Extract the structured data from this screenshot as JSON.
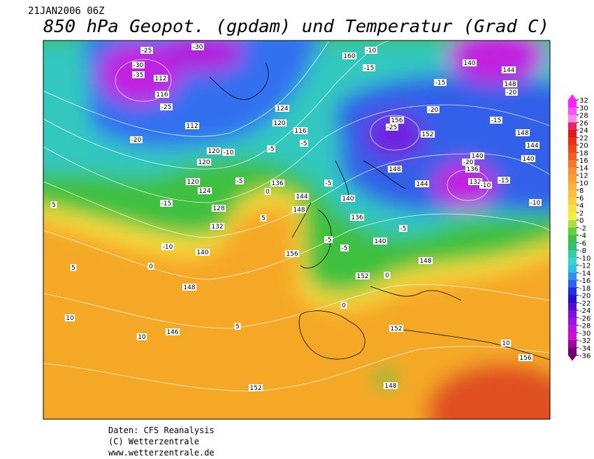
{
  "header": {
    "date": "21JAN2006 06Z",
    "title": "850 hPa Geopot. (gpdam) und  Temperatur (Grad C)"
  },
  "colorbar": {
    "ticks": [
      32,
      30,
      28,
      26,
      24,
      22,
      20,
      18,
      16,
      14,
      12,
      10,
      8,
      6,
      4,
      2,
      0,
      -2,
      -4,
      -6,
      -8,
      -10,
      -12,
      -14,
      -16,
      -18,
      -20,
      -22,
      -24,
      -26,
      -28,
      -30,
      -32,
      -34,
      -36
    ],
    "colors": [
      "#ff20ff",
      "#ff50ff",
      "#ff88ee",
      "#ee2060",
      "#e01818",
      "#e83018",
      "#ee4818",
      "#f06020",
      "#f47828",
      "#f89030",
      "#fca030",
      "#fcb438",
      "#fcc040",
      "#fcd040",
      "#fce040",
      "#f0f040",
      "#b0e040",
      "#60d040",
      "#40c040",
      "#30c070",
      "#30d0a0",
      "#30d8d0",
      "#30c0f0",
      "#3090f0",
      "#3060f0",
      "#2030e8",
      "#2010d0",
      "#5010d0",
      "#8010e0",
      "#a010e0",
      "#c010e0",
      "#d010d0",
      "#a000a0",
      "#700070"
    ]
  },
  "map_labels": [
    -25,
    -30,
    -30,
    -35,
    112,
    116,
    -25,
    -10,
    160,
    -15,
    140,
    144,
    148,
    -20,
    -15,
    -20,
    156,
    -25,
    152,
    -15,
    148,
    144,
    140,
    140,
    -20,
    136,
    132,
    -10,
    -15,
    124,
    120,
    116,
    -5,
    -5,
    -10,
    120,
    120,
    112,
    -20,
    120,
    124,
    -5,
    136,
    144,
    148,
    -15,
    128,
    132,
    -10,
    140,
    156,
    148,
    146,
    152,
    148,
    152,
    152,
    140,
    136,
    140,
    148,
    0,
    -5,
    -5,
    -5,
    -10,
    10,
    5,
    5,
    10,
    5,
    10,
    156,
    0,
    0,
    5,
    0,
    144,
    148,
    -5
  ],
  "footer": {
    "line1": "Daten: CFS Reanalysis",
    "line2": "(C) Wetterzentrale",
    "line3": "www.wetterzentrale.de"
  }
}
